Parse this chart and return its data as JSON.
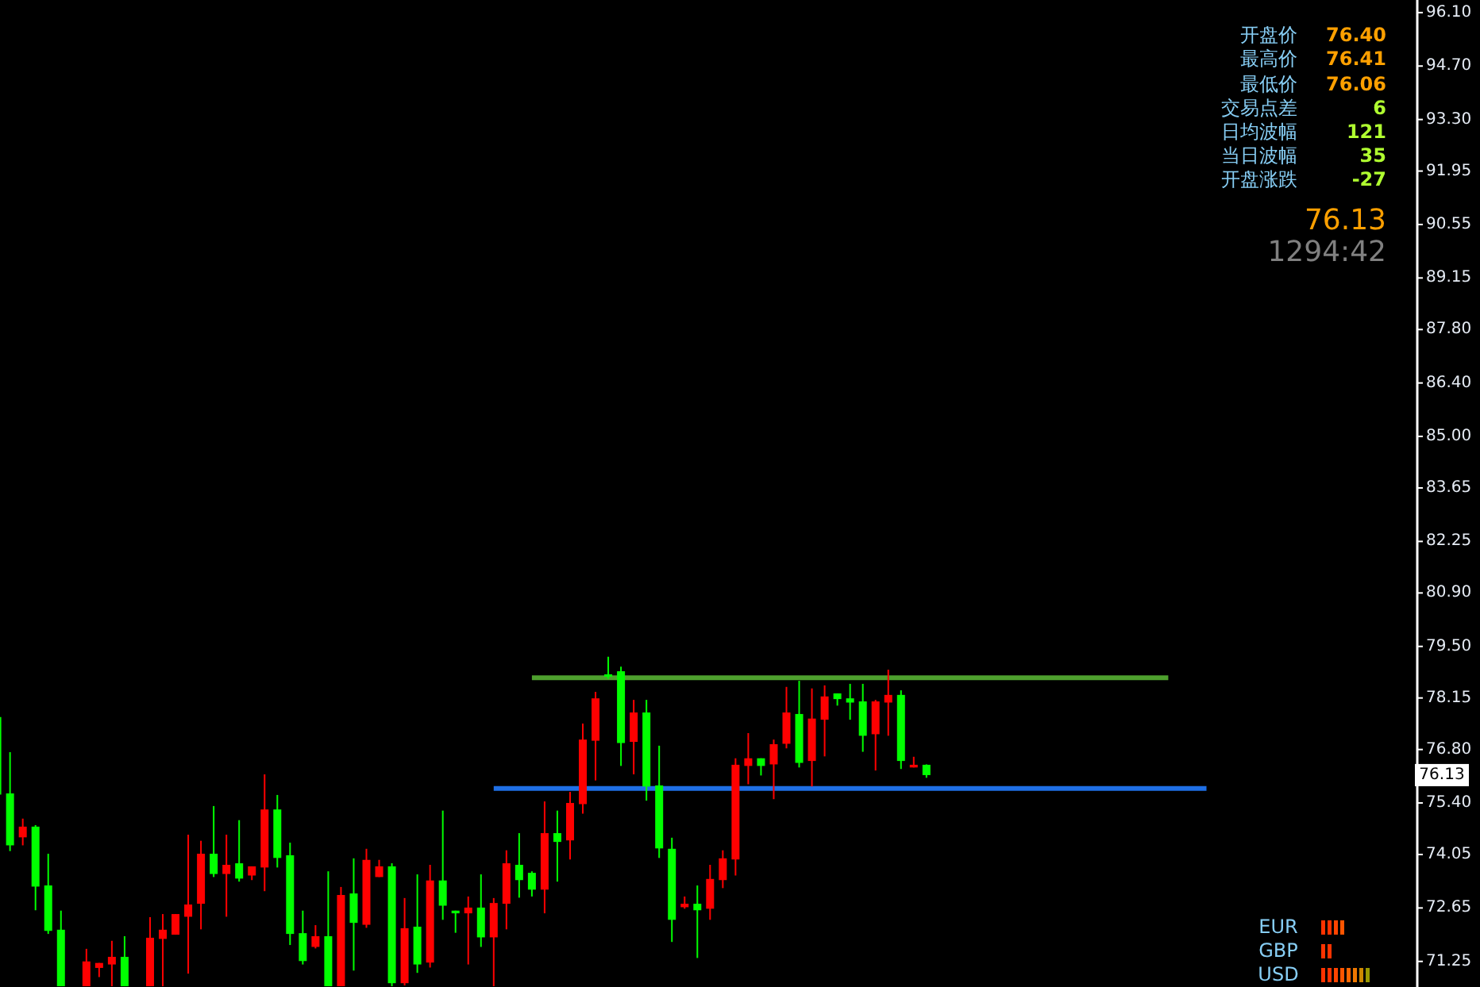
{
  "chart_data": {
    "type": "candlestick",
    "categories": [
      null,
      null,
      null,
      null,
      null,
      null,
      null,
      null,
      null,
      null,
      null,
      null,
      null,
      null,
      null,
      null,
      null,
      null,
      null,
      null,
      null,
      null,
      null,
      null,
      null,
      null,
      null,
      null,
      null,
      null,
      null,
      null,
      null,
      null,
      null,
      null,
      null,
      null,
      null,
      null,
      null,
      null,
      null,
      null,
      null,
      null,
      null,
      null,
      null,
      null,
      null,
      null,
      null,
      null,
      null,
      null,
      null,
      null,
      null,
      null,
      null,
      null,
      null,
      null,
      null,
      null,
      null,
      null,
      null,
      null,
      null,
      null,
      null,
      null,
      null,
      null,
      null,
      null,
      null,
      null,
      null,
      null,
      null,
      null,
      null,
      null,
      null,
      null,
      null,
      null,
      null,
      null,
      null,
      null,
      null,
      null,
      null,
      null,
      null,
      null,
      null,
      null,
      null,
      null,
      null,
      null,
      null,
      null,
      null,
      null,
      null,
      null
    ],
    "ohlc": [
      [
        77.65,
        77.65,
        75.62,
        75.62
      ],
      [
        75.65,
        76.73,
        74.14,
        74.29
      ],
      [
        74.5,
        74.99,
        74.29,
        74.78
      ],
      [
        74.78,
        74.82,
        72.59,
        73.21
      ],
      [
        73.24,
        74.07,
        71.97,
        72.05
      ],
      [
        72.08,
        72.58,
        70.6,
        70.6
      ],
      null,
      [
        70.6,
        71.58,
        70.6,
        71.25
      ],
      [
        71.08,
        71.21,
        70.84,
        71.21
      ],
      [
        71.17,
        71.79,
        70.6,
        71.37
      ],
      [
        71.37,
        71.91,
        70.6,
        70.6
      ],
      null,
      [
        70.6,
        72.41,
        70.6,
        71.87
      ],
      [
        71.84,
        72.49,
        70.6,
        72.08
      ],
      [
        71.95,
        72.49,
        71.95,
        72.49
      ],
      [
        72.42,
        74.57,
        70.93,
        72.74
      ],
      [
        72.76,
        74.41,
        72.09,
        74.07
      ],
      [
        74.07,
        75.32,
        73.46,
        73.54
      ],
      [
        73.54,
        74.57,
        72.42,
        73.78
      ],
      [
        73.82,
        74.95,
        73.34,
        73.42
      ],
      [
        73.5,
        73.74,
        73.38,
        73.74
      ],
      [
        73.71,
        76.15,
        73.09,
        75.23
      ],
      [
        75.23,
        75.61,
        73.71,
        73.96
      ],
      [
        74.03,
        74.36,
        71.68,
        71.97
      ],
      [
        71.99,
        72.58,
        71.17,
        71.26
      ],
      [
        71.63,
        72.2,
        71.59,
        71.91
      ],
      [
        71.91,
        73.61,
        70.6,
        70.6
      ],
      [
        70.6,
        73.2,
        70.6,
        72.99
      ],
      [
        73.03,
        73.95,
        71.01,
        72.26
      ],
      [
        72.21,
        74.2,
        72.13,
        73.91
      ],
      [
        73.46,
        73.91,
        73.46,
        73.74
      ],
      [
        73.74,
        73.82,
        70.6,
        70.68
      ],
      [
        70.68,
        72.91,
        70.62,
        72.12
      ],
      [
        72.16,
        73.53,
        70.95,
        71.17
      ],
      [
        71.22,
        73.78,
        71.09,
        73.37
      ],
      [
        73.37,
        75.2,
        72.34,
        72.71
      ],
      [
        72.58,
        72.58,
        72.0,
        72.51
      ],
      [
        72.51,
        72.95,
        71.17,
        72.66
      ],
      [
        72.66,
        73.53,
        71.63,
        71.88
      ],
      [
        71.88,
        72.91,
        70.6,
        72.78
      ],
      [
        72.76,
        74.16,
        72.09,
        73.82
      ],
      [
        73.78,
        74.61,
        72.92,
        73.38
      ],
      [
        73.57,
        73.61,
        72.95,
        73.13
      ],
      [
        73.13,
        75.44,
        72.51,
        74.61
      ],
      [
        74.61,
        75.2,
        73.34,
        74.38
      ],
      [
        74.42,
        75.69,
        73.92,
        75.4
      ],
      [
        75.37,
        77.48,
        75.12,
        77.06
      ],
      [
        77.03,
        78.31,
        75.99,
        78.14
      ],
      [
        78.77,
        79.23,
        78.65,
        78.77
      ],
      [
        78.85,
        78.97,
        76.37,
        76.97
      ],
      [
        77.0,
        78.1,
        76.15,
        77.77
      ],
      [
        77.77,
        78.1,
        75.46,
        75.83
      ],
      [
        75.86,
        76.9,
        73.96,
        74.21
      ],
      [
        74.2,
        74.49,
        71.76,
        72.34
      ],
      [
        72.67,
        72.95,
        72.63,
        72.76
      ],
      [
        72.76,
        73.24,
        71.34,
        72.59
      ],
      [
        72.63,
        73.78,
        72.34,
        73.41
      ],
      [
        73.38,
        74.16,
        73.17,
        73.95
      ],
      [
        73.92,
        76.57,
        73.5,
        76.4
      ],
      [
        76.37,
        77.23,
        75.89,
        76.57
      ],
      [
        76.57,
        76.57,
        76.12,
        76.37
      ],
      [
        76.41,
        77.06,
        75.5,
        76.94
      ],
      [
        76.95,
        78.44,
        76.83,
        77.77
      ],
      [
        77.73,
        78.6,
        76.33,
        76.45
      ],
      [
        76.5,
        78.4,
        75.83,
        77.61
      ],
      [
        77.58,
        78.48,
        76.62,
        78.19
      ],
      [
        78.27,
        78.27,
        77.95,
        78.12
      ],
      [
        78.14,
        78.52,
        77.58,
        78.03
      ],
      [
        78.06,
        78.52,
        76.74,
        77.16
      ],
      [
        77.2,
        78.1,
        76.25,
        78.06
      ],
      [
        78.03,
        78.89,
        77.16,
        78.23
      ],
      [
        78.23,
        78.35,
        76.29,
        76.5
      ],
      [
        76.33,
        76.61,
        76.33,
        76.4
      ],
      [
        76.4,
        76.41,
        76.06,
        76.13
      ],
      null,
      null,
      null,
      null,
      null,
      null,
      null,
      null,
      null,
      null,
      null,
      null,
      null,
      null,
      null,
      null,
      null,
      null,
      null,
      null,
      null,
      null,
      null,
      null,
      null,
      null,
      null,
      null,
      null,
      null,
      null,
      null,
      null,
      null,
      null,
      null,
      null,
      null
    ],
    "colors": [
      "#00ff00",
      "#00ff00",
      "#ff0000",
      "#00ff00",
      "#00ff00",
      "#00ff00",
      null,
      "#ff0000",
      "#ff0000",
      "#ff0000",
      "#00ff00",
      null,
      "#ff0000",
      "#ff0000",
      "#ff0000",
      "#ff0000",
      "#ff0000",
      "#00ff00",
      "#ff0000",
      "#00ff00",
      "#ff0000",
      "#ff0000",
      "#00ff00",
      "#00ff00",
      "#00ff00",
      "#ff0000",
      "#00ff00",
      "#ff0000",
      "#00ff00",
      "#ff0000",
      "#ff0000",
      "#00ff00",
      "#ff0000",
      "#00ff00",
      "#ff0000",
      "#00ff00",
      "#00ff00",
      "#ff0000",
      "#00ff00",
      "#ff0000",
      "#ff0000",
      "#00ff00",
      "#00ff00",
      "#ff0000",
      "#00ff00",
      "#ff0000",
      "#ff0000",
      "#ff0000",
      "#00ff00",
      "#00ff00",
      "#ff0000",
      "#00ff00",
      "#00ff00",
      "#00ff00",
      "#ff0000",
      "#00ff00",
      "#ff0000",
      "#ff0000",
      "#ff0000",
      "#ff0000",
      "#00ff00",
      "#ff0000",
      "#ff0000",
      "#00ff00",
      "#ff0000",
      "#ff0000",
      "#00ff00",
      "#00ff00",
      "#00ff00",
      "#ff0000",
      "#ff0000",
      "#00ff00",
      "#ff0000",
      "#00ff00",
      null,
      null,
      null,
      null,
      null,
      null,
      null,
      null,
      null,
      null,
      null,
      null,
      null,
      null,
      null,
      null,
      null,
      null,
      null,
      null,
      null,
      null,
      null,
      null,
      null,
      null,
      null,
      null,
      null,
      null,
      null,
      null,
      null,
      null,
      null,
      null,
      null,
      null
    ],
    "series": [
      {
        "type": "line",
        "color": "#4ea02e",
        "values": [
          null,
          null,
          null,
          null,
          null,
          null,
          null,
          null,
          null,
          null,
          null,
          null,
          null,
          null,
          null,
          null,
          null,
          null,
          null,
          null,
          null,
          null,
          null,
          null,
          null,
          null,
          null,
          null,
          null,
          null,
          null,
          null,
          null,
          null,
          null,
          null,
          null,
          null,
          null,
          null,
          null,
          null,
          78.68,
          78.68,
          78.68,
          78.68,
          78.68,
          78.68,
          78.68,
          78.68,
          78.68,
          78.68,
          78.68,
          78.68,
          78.68,
          78.68,
          78.68,
          78.68,
          78.68,
          78.68,
          78.68,
          78.68,
          78.68,
          78.68,
          78.68,
          78.68,
          78.68,
          78.68,
          78.68,
          78.68,
          78.68,
          78.68,
          78.68,
          78.68,
          78.68,
          78.68,
          78.68,
          78.68,
          78.68,
          78.68,
          78.68,
          78.68,
          78.68,
          78.68,
          78.68,
          78.68,
          78.68,
          78.68,
          78.68,
          78.68,
          78.68,
          78.68,
          78.68,
          null,
          null,
          null,
          null,
          null,
          null,
          null,
          null,
          null,
          null,
          null,
          null,
          null,
          null,
          null,
          null,
          null,
          null,
          null
        ]
      },
      {
        "type": "line",
        "color": "#1f6fe5",
        "values": [
          null,
          null,
          null,
          null,
          null,
          null,
          null,
          null,
          null,
          null,
          null,
          null,
          null,
          null,
          null,
          null,
          null,
          null,
          null,
          null,
          null,
          null,
          null,
          null,
          null,
          null,
          null,
          null,
          null,
          null,
          null,
          null,
          null,
          null,
          null,
          null,
          null,
          null,
          null,
          75.78,
          75.78,
          75.78,
          75.78,
          75.78,
          75.78,
          75.78,
          75.78,
          75.78,
          75.78,
          75.78,
          75.78,
          75.78,
          75.78,
          75.78,
          75.78,
          75.78,
          75.78,
          75.78,
          75.78,
          75.78,
          75.78,
          75.78,
          75.78,
          75.78,
          75.78,
          75.78,
          75.78,
          75.78,
          75.78,
          75.78,
          75.78,
          75.78,
          75.78,
          75.78,
          75.78,
          75.78,
          75.78,
          75.78,
          75.78,
          75.78,
          75.78,
          75.78,
          75.78,
          75.78,
          75.78,
          75.78,
          75.78,
          75.78,
          75.78,
          75.78,
          75.78,
          75.78,
          75.78,
          75.78,
          75.78,
          75.78,
          null,
          null,
          null,
          null,
          null,
          null,
          null,
          null,
          null,
          null,
          null,
          null,
          null,
          null,
          null,
          null
        ]
      }
    ],
    "ylim": [
      70.58,
      96.43
    ],
    "yticks": [
      {
        "value": 96.1,
        "label": "96.10"
      },
      {
        "value": 94.7,
        "label": "94.70"
      },
      {
        "value": 93.3,
        "label": "93.30"
      },
      {
        "value": 91.95,
        "label": "91.95"
      },
      {
        "value": 90.55,
        "label": "90.55"
      },
      {
        "value": 89.15,
        "label": "89.15"
      },
      {
        "value": 87.8,
        "label": "87.80"
      },
      {
        "value": 86.4,
        "label": "86.40"
      },
      {
        "value": 85,
        "label": "85.00"
      },
      {
        "value": 83.65,
        "label": "83.65"
      },
      {
        "value": 82.25,
        "label": "82.25"
      },
      {
        "value": 80.9,
        "label": "80.90"
      },
      {
        "value": 79.5,
        "label": "79.50"
      },
      {
        "value": 78.15,
        "label": "78.15"
      },
      {
        "value": 76.8,
        "label": "76.80"
      },
      {
        "value": 75.4,
        "label": "75.40"
      },
      {
        "value": 74.05,
        "label": "74.05"
      },
      {
        "value": 72.65,
        "label": "72.65"
      },
      {
        "value": 71.25,
        "label": "71.25"
      }
    ],
    "tick_labels": "y",
    "annotations": [
      "开盘价",
      "76.40",
      "最高价",
      "76.41",
      "最低价",
      "76.06",
      "交易点差",
      "6",
      "日均波幅",
      "121",
      "当日波幅",
      "35",
      "开盘涨跌",
      "-27",
      "76.13",
      "1294:42",
      {
        "text": "76.13",
        "y": 76.13
      },
      "EUR",
      "GBP",
      "USD"
    ]
  }
}
